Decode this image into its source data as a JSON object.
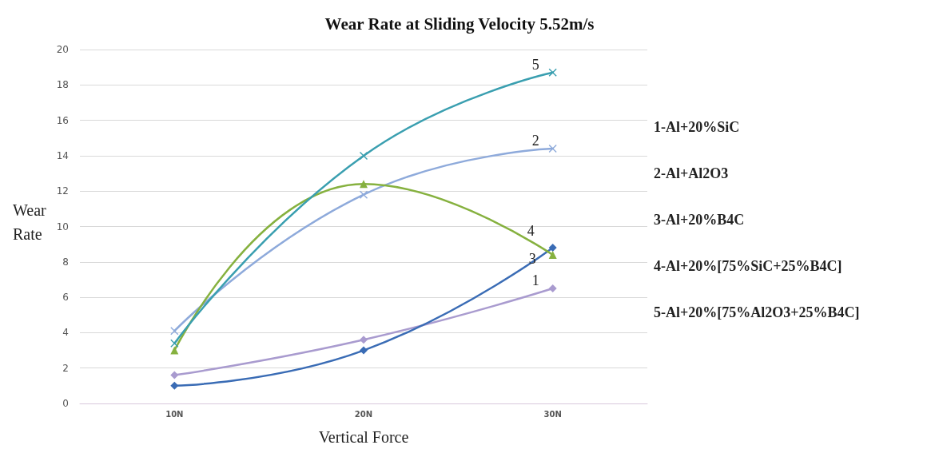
{
  "chart_data": {
    "type": "line",
    "title": "Wear Rate at Sliding Velocity 5.52m/s",
    "xlabel": "Vertical Force",
    "ylabel": "Wear Rate",
    "categories": [
      "10N",
      "20N",
      "30N"
    ],
    "series": [
      {
        "name": "1",
        "color": "#a99bcf",
        "values": [
          1.6,
          3.6,
          6.5
        ],
        "marker": "diamond"
      },
      {
        "name": "2",
        "color": "#8eaadb",
        "values": [
          4.1,
          11.8,
          14.4
        ],
        "marker": "cross"
      },
      {
        "name": "3",
        "color": "#3a6cb5",
        "values": [
          1.0,
          3.0,
          8.8
        ],
        "marker": "diamond"
      },
      {
        "name": "4",
        "color": "#86b13f",
        "values": [
          3.0,
          12.4,
          8.4
        ],
        "marker": "triangle"
      },
      {
        "name": "5",
        "color": "#3a9fb0",
        "values": [
          3.4,
          14.0,
          18.7
        ],
        "marker": "cross"
      }
    ],
    "ylim": [
      0,
      20
    ],
    "yticks": [
      0,
      2,
      4,
      6,
      8,
      10,
      12,
      14,
      16,
      18,
      20
    ],
    "grid": "y",
    "legend": false,
    "line_style": "solid",
    "annotations": [
      "1-Al+20%SiC",
      "2-Al+Al2O3",
      "3-Al+20%B4C",
      "4-Al+20%[75%SiC+25%B4C]",
      "5-Al+20%[75%Al2O3+25%B4C]"
    ]
  }
}
